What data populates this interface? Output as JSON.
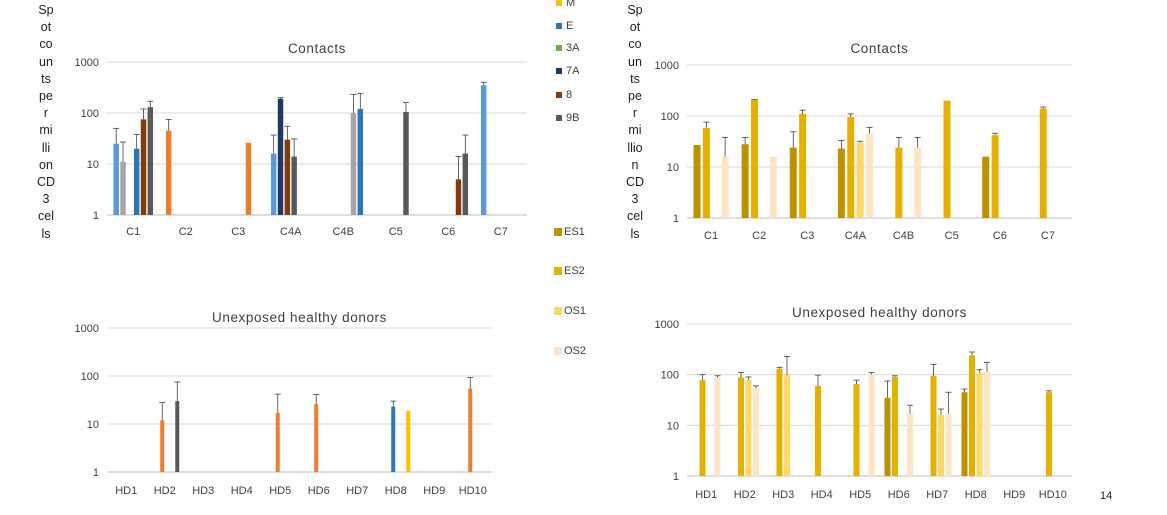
{
  "y_axis_label": "Spot counts per million CD3 cells",
  "y_label_lines_left": [
    "Sp",
    "ot",
    "co",
    "un",
    "ts",
    "pe",
    "r",
    "mi",
    "lli",
    "on",
    "CD",
    "3",
    "cel",
    "ls"
  ],
  "y_label_lines_right": [
    "Sp",
    "ot",
    "co",
    "un",
    "ts",
    "pe",
    "r",
    "mi",
    "llio",
    "n",
    "CD",
    "3",
    "cel",
    "ls"
  ],
  "page_number": "14",
  "legend_top": [
    {
      "label": "M",
      "color": "#FFC000"
    },
    {
      "label": "E",
      "color": "#2E75B6"
    },
    {
      "label": "3A",
      "color": "#70AD47"
    },
    {
      "label": "7A",
      "color": "#203864"
    },
    {
      "label": "8",
      "color": "#843C0C"
    },
    {
      "label": "9B",
      "color": "#595959"
    }
  ],
  "legend_bottom": [
    {
      "label": "ES1",
      "color": "#BF9000"
    },
    {
      "label": "ES2",
      "color": "#E6B000"
    },
    {
      "label": "OS1",
      "color": "#FFD966"
    },
    {
      "label": "OS2",
      "color": "#FCE4C4"
    }
  ],
  "chart_data": [
    {
      "type": "bar",
      "title": "Contacts",
      "scale": "log",
      "ylim": [
        1,
        1000
      ],
      "yticks": [
        "1",
        "10",
        "100",
        "1000"
      ],
      "categories": [
        "C1",
        "C2",
        "C3",
        "C4A",
        "C4B",
        "C5",
        "C6",
        "C7"
      ],
      "bars": [
        {
          "cat": 0,
          "slot": 0,
          "value": 25,
          "err": 50,
          "color": "#5B9BD5"
        },
        {
          "cat": 0,
          "slot": 1,
          "value": 11,
          "err": 27,
          "color": "#A5A5A5"
        },
        {
          "cat": 0,
          "slot": 3,
          "value": 20,
          "err": 38,
          "color": "#2E75B6"
        },
        {
          "cat": 0,
          "slot": 4,
          "value": 75,
          "err": 120,
          "color": "#843C0C"
        },
        {
          "cat": 0,
          "slot": 5,
          "value": 130,
          "err": 170,
          "color": "#595959"
        },
        {
          "cat": 1,
          "slot": 0,
          "value": 45,
          "err": 75,
          "color": "#ED7D31"
        },
        {
          "cat": 2,
          "slot": 4,
          "value": 26,
          "err": null,
          "color": "#ED7D31"
        },
        {
          "cat": 3,
          "slot": 0,
          "value": 16,
          "err": 37,
          "color": "#5B9BD5"
        },
        {
          "cat": 3,
          "slot": 1,
          "value": 190,
          "err": 200,
          "color": "#203864"
        },
        {
          "cat": 3,
          "slot": 2,
          "value": 30,
          "err": 55,
          "color": "#843C0C"
        },
        {
          "cat": 3,
          "slot": 3,
          "value": 14,
          "err": 31,
          "color": "#595959"
        },
        {
          "cat": 4,
          "slot": 4,
          "value": 100,
          "err": 230,
          "color": "#A5A5A5"
        },
        {
          "cat": 4,
          "slot": 5,
          "value": 120,
          "err": 240,
          "color": "#2E75B6"
        },
        {
          "cat": 5,
          "slot": 4,
          "value": 105,
          "err": 160,
          "color": "#595959"
        },
        {
          "cat": 6,
          "slot": 4,
          "value": 5,
          "err": 14,
          "color": "#843C0C"
        },
        {
          "cat": 6,
          "slot": 5,
          "value": 16,
          "err": 37,
          "color": "#595959"
        },
        {
          "cat": 7,
          "slot": 0,
          "value": 350,
          "err": 400,
          "color": "#5B9BD5"
        }
      ]
    },
    {
      "type": "bar",
      "title": "Contacts",
      "scale": "log",
      "ylim": [
        1,
        1000
      ],
      "yticks": [
        "1",
        "10",
        "100",
        "1000"
      ],
      "categories": [
        "C1",
        "C2",
        "C3",
        "C4A",
        "C4B",
        "C5",
        "C6",
        "C7"
      ],
      "bars": [
        {
          "cat": 0,
          "slot": 0,
          "value": 27,
          "err": null,
          "color": "#BF9000"
        },
        {
          "cat": 0,
          "slot": 1,
          "value": 58,
          "err": 76,
          "color": "#E6B000"
        },
        {
          "cat": 0,
          "slot": 3,
          "value": 16,
          "err": 38,
          "color": "#FCE4C4"
        },
        {
          "cat": 1,
          "slot": 0,
          "value": 28,
          "err": 38,
          "color": "#BF9000"
        },
        {
          "cat": 1,
          "slot": 1,
          "value": 210,
          "err": 210,
          "color": "#E6B000"
        },
        {
          "cat": 1,
          "slot": 3,
          "value": 16,
          "err": null,
          "color": "#FCE4C4"
        },
        {
          "cat": 2,
          "slot": 0,
          "value": 24,
          "err": 49,
          "color": "#BF9000"
        },
        {
          "cat": 2,
          "slot": 1,
          "value": 110,
          "err": 130,
          "color": "#E6B000"
        },
        {
          "cat": 3,
          "slot": 0,
          "value": 23,
          "err": 33,
          "color": "#BF9000"
        },
        {
          "cat": 3,
          "slot": 1,
          "value": 95,
          "err": 110,
          "color": "#E6B000"
        },
        {
          "cat": 3,
          "slot": 2,
          "value": 30,
          "err": 32,
          "color": "#FFD966"
        },
        {
          "cat": 3,
          "slot": 3,
          "value": 45,
          "err": 60,
          "color": "#FCE4C4"
        },
        {
          "cat": 4,
          "slot": 1,
          "value": 24,
          "err": 38,
          "color": "#E6B000"
        },
        {
          "cat": 4,
          "slot": 3,
          "value": 24,
          "err": 38,
          "color": "#FCE4C4"
        },
        {
          "cat": 5,
          "slot": 1,
          "value": 200,
          "err": null,
          "color": "#E6B000"
        },
        {
          "cat": 6,
          "slot": 0,
          "value": 16,
          "err": null,
          "color": "#BF9000"
        },
        {
          "cat": 6,
          "slot": 1,
          "value": 42,
          "err": 46,
          "color": "#E6B000"
        },
        {
          "cat": 7,
          "slot": 1,
          "value": 140,
          "err": 150,
          "color": "#E6B000"
        }
      ]
    },
    {
      "type": "bar",
      "title": "Unexposed healthy donors",
      "scale": "log",
      "ylim": [
        1,
        1000
      ],
      "yticks": [
        "1",
        "10",
        "100",
        "1000"
      ],
      "categories": [
        "HD1",
        "HD2",
        "HD3",
        "HD4",
        "HD5",
        "HD6",
        "HD7",
        "HD8",
        "HD9",
        "HD10"
      ],
      "bars": [
        {
          "cat": 1,
          "slot": 2,
          "value": 12,
          "err": 28,
          "color": "#ED7D31"
        },
        {
          "cat": 1,
          "slot": 5,
          "value": 30,
          "err": 75,
          "color": "#595959"
        },
        {
          "cat": 4,
          "slot": 2,
          "value": 17,
          "err": 42,
          "color": "#ED7D31"
        },
        {
          "cat": 5,
          "slot": 2,
          "value": 26,
          "err": 41,
          "color": "#ED7D31"
        },
        {
          "cat": 7,
          "slot": 2,
          "value": 23,
          "err": 30,
          "color": "#2E75B6"
        },
        {
          "cat": 7,
          "slot": 5,
          "value": 19,
          "err": null,
          "color": "#FFC000"
        },
        {
          "cat": 9,
          "slot": 2,
          "value": 55,
          "err": 93,
          "color": "#ED7D31"
        }
      ]
    },
    {
      "type": "bar",
      "title": "Unexposed healthy donors",
      "scale": "log",
      "ylim": [
        1,
        1000
      ],
      "yticks": [
        "1",
        "10",
        "100",
        "1000"
      ],
      "categories": [
        "HD1",
        "HD2",
        "HD3",
        "HD4",
        "HD5",
        "HD6",
        "HD7",
        "HD8",
        "HD9",
        "HD10"
      ],
      "bars": [
        {
          "cat": 0,
          "slot": 1,
          "value": 78,
          "err": 100,
          "color": "#E6B000"
        },
        {
          "cat": 0,
          "slot": 3,
          "value": 88,
          "err": 95,
          "color": "#FCE4C4"
        },
        {
          "cat": 1,
          "slot": 1,
          "value": 88,
          "err": 110,
          "color": "#E6B000"
        },
        {
          "cat": 1,
          "slot": 2,
          "value": 80,
          "err": 90,
          "color": "#FFD966"
        },
        {
          "cat": 1,
          "slot": 3,
          "value": 55,
          "err": 60,
          "color": "#FCE4C4"
        },
        {
          "cat": 2,
          "slot": 1,
          "value": 130,
          "err": 140,
          "color": "#E6B000"
        },
        {
          "cat": 2,
          "slot": 2,
          "value": 98,
          "err": 230,
          "color": "#FFD966"
        },
        {
          "cat": 3,
          "slot": 1,
          "value": 60,
          "err": 98,
          "color": "#E6B000"
        },
        {
          "cat": 4,
          "slot": 1,
          "value": 65,
          "err": 78,
          "color": "#E6B000"
        },
        {
          "cat": 4,
          "slot": 3,
          "value": 100,
          "err": 110,
          "color": "#FCE4C4"
        },
        {
          "cat": 5,
          "slot": 0,
          "value": 35,
          "err": 75,
          "color": "#BF9000"
        },
        {
          "cat": 5,
          "slot": 1,
          "value": 90,
          "err": 95,
          "color": "#E6B000"
        },
        {
          "cat": 5,
          "slot": 3,
          "value": 17,
          "err": 25,
          "color": "#FCE4C4"
        },
        {
          "cat": 6,
          "slot": 1,
          "value": 95,
          "err": 160,
          "color": "#E6B000"
        },
        {
          "cat": 6,
          "slot": 2,
          "value": 16,
          "err": 21,
          "color": "#FFD966"
        },
        {
          "cat": 6,
          "slot": 3,
          "value": 17,
          "err": 45,
          "color": "#FCE4C4"
        },
        {
          "cat": 7,
          "slot": 0,
          "value": 45,
          "err": 52,
          "color": "#BF9000"
        },
        {
          "cat": 7,
          "slot": 1,
          "value": 240,
          "err": 280,
          "color": "#E6B000"
        },
        {
          "cat": 7,
          "slot": 2,
          "value": 110,
          "err": 125,
          "color": "#FFD966"
        },
        {
          "cat": 7,
          "slot": 3,
          "value": 115,
          "err": 175,
          "color": "#FCE4C4"
        },
        {
          "cat": 9,
          "slot": 1,
          "value": 45,
          "err": 48,
          "color": "#E6B000"
        }
      ]
    }
  ]
}
